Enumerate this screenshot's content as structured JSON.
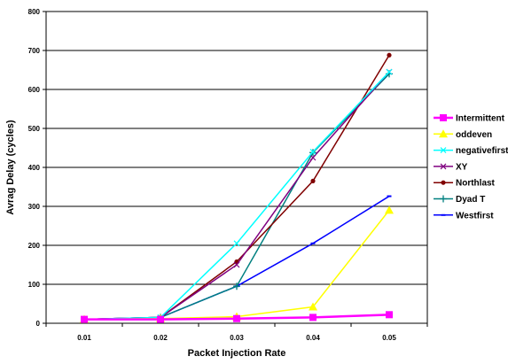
{
  "chart_data": {
    "type": "line",
    "title": "",
    "xlabel": "Packet Injection Rate",
    "ylabel": "Avrag Delay (cycles)",
    "categories": [
      "0.01",
      "0.02",
      "0.03",
      "0.04",
      "0.05"
    ],
    "ylim": [
      0,
      800
    ],
    "yticks": [
      "0",
      "100",
      "200",
      "300",
      "400",
      "500",
      "600",
      "700",
      "800"
    ],
    "grid": true,
    "legend_position": "right",
    "series": [
      {
        "name": "Intermittent",
        "values": [
          10,
          10,
          12,
          15,
          22
        ],
        "color": "#ff00ff",
        "marker": "square"
      },
      {
        "name": "oddeven",
        "values": [
          10,
          12,
          17,
          42,
          290
        ],
        "color": "#ffff00",
        "marker": "triangle"
      },
      {
        "name": "negativefirst",
        "values": [
          10,
          15,
          205,
          440,
          645
        ],
        "color": "#00ffff",
        "marker": "x"
      },
      {
        "name": "XY",
        "values": [
          10,
          15,
          150,
          425,
          645
        ],
        "color": "#800080",
        "marker": "x"
      },
      {
        "name": "Northlast",
        "values": [
          10,
          15,
          158,
          365,
          688
        ],
        "color": "#800000",
        "marker": "circle"
      },
      {
        "name": "Dyad T",
        "values": [
          10,
          15,
          95,
          438,
          640
        ],
        "color": "#008080",
        "marker": "plus"
      },
      {
        "name": "Westfirst",
        "values": [
          10,
          15,
          95,
          205,
          326
        ],
        "color": "#0000ff",
        "marker": "dash"
      }
    ]
  }
}
